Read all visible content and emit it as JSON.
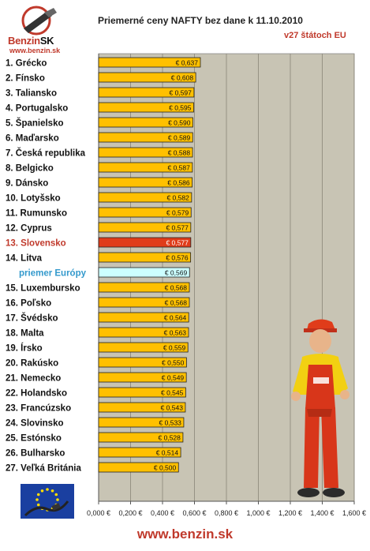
{
  "header": {
    "title": "Priemerné ceny NAFTY bez dane k 11.10.2010",
    "subtitle": "v27 štátoch EU",
    "logo_text_main": "Benzin",
    "logo_text_sk": "SK",
    "logo_url": "www.benzin.sk"
  },
  "footer": {
    "url": "www.benzin.sk"
  },
  "colors": {
    "bar": "#ffc000",
    "bar_highlight": "#e03c1a",
    "bar_average": "#ccffff",
    "plot_bg": "#c8c4b4",
    "label_highlight": "#c0392b",
    "label_average": "#3399cc"
  },
  "icons": [
    "benzin-logo-icon",
    "eu-flag-icon",
    "mascot-figure-icon"
  ],
  "chart_data": {
    "type": "bar",
    "orientation": "horizontal",
    "title": "Priemerné ceny NAFTY bez dane k 11.10.2010",
    "subtitle": "v27 štátoch EU",
    "categories": [
      "1. Grécko",
      "2. Fínsko",
      "3. Taliansko",
      "4. Portugalsko",
      "5. Španielsko",
      "6. Maďarsko",
      "7. Česká republika",
      "8. Belgicko",
      "9. Dánsko",
      "10. Lotyšsko",
      "11. Rumunsko",
      "12. Cyprus",
      "13. Slovensko",
      "14. Litva",
      "priemer Európy",
      "15. Luxembursko",
      "16. Poľsko",
      "17. Švédsko",
      "18. Malta",
      "19. Írsko",
      "20. Rakúsko",
      "21. Nemecko",
      "22. Holandsko",
      "23. Francúzsko",
      "24. Slovinsko",
      "25. Estónsko",
      "26. Bulharsko",
      "27. Veľká Británia"
    ],
    "values": [
      0.637,
      0.608,
      0.597,
      0.595,
      0.59,
      0.589,
      0.588,
      0.587,
      0.586,
      0.582,
      0.579,
      0.577,
      0.577,
      0.576,
      0.569,
      0.568,
      0.568,
      0.564,
      0.563,
      0.559,
      0.55,
      0.549,
      0.545,
      0.543,
      0.533,
      0.528,
      0.514,
      0.5
    ],
    "value_labels": [
      "€ 0,637",
      "€ 0,608",
      "€ 0,597",
      "€ 0,595",
      "€ 0,590",
      "€ 0,589",
      "€ 0,588",
      "€ 0,587",
      "€ 0,586",
      "€ 0,582",
      "€ 0,579",
      "€ 0,577",
      "€ 0,577",
      "€ 0,576",
      "€ 0,569",
      "€ 0,568",
      "€ 0,568",
      "€ 0,564",
      "€ 0,563",
      "€ 0,559",
      "€ 0,550",
      "€ 0,549",
      "€ 0,545",
      "€ 0,543",
      "€ 0,533",
      "€ 0,528",
      "€ 0,514",
      "€ 0,500"
    ],
    "highlight_index": 12,
    "average_index": 14,
    "x_ticks": [
      0,
      0.2,
      0.4,
      0.6,
      0.8,
      1.0,
      1.2,
      1.4,
      1.6
    ],
    "x_tick_labels": [
      "0,000 €",
      "0,200 €",
      "0,400 €",
      "0,600 €",
      "0,800 €",
      "1,000 €",
      "1,200 €",
      "1,400 €",
      "1,600 €"
    ],
    "xlim": [
      0,
      1.6
    ],
    "grid": true,
    "legend": "none"
  }
}
